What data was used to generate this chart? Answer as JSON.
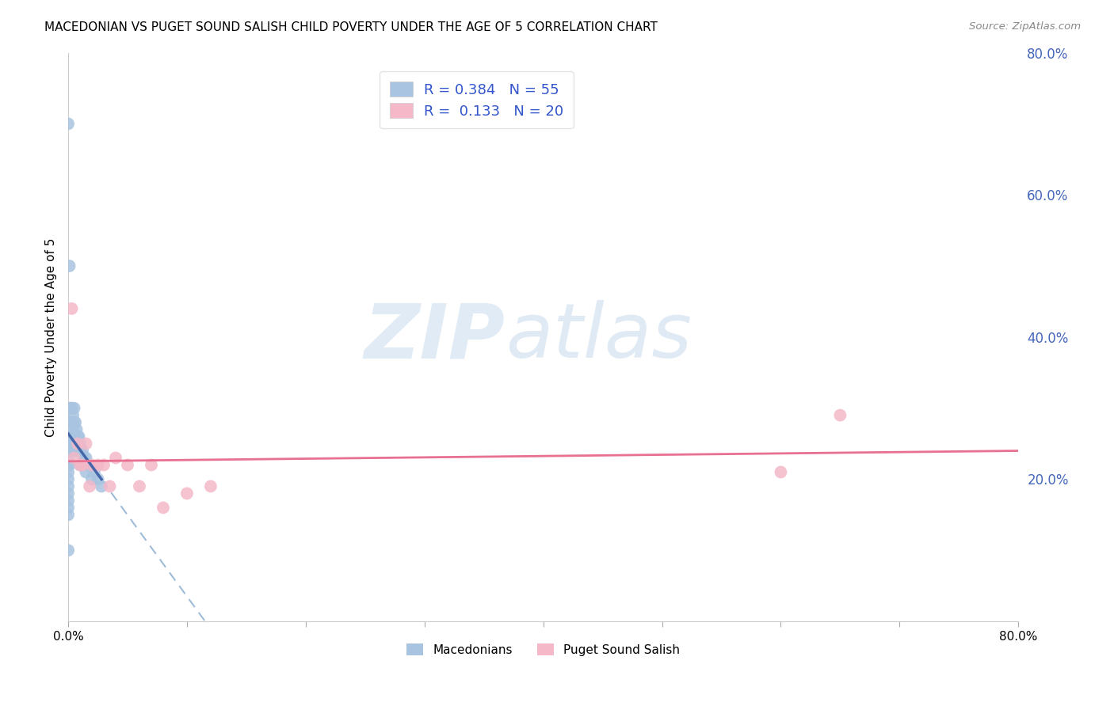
{
  "title": "MACEDONIAN VS PUGET SOUND SALISH CHILD POVERTY UNDER THE AGE OF 5 CORRELATION CHART",
  "source": "Source: ZipAtlas.com",
  "ylabel": "Child Poverty Under the Age of 5",
  "xlim": [
    0.0,
    0.8
  ],
  "ylim": [
    0.0,
    0.8
  ],
  "macedonian_R": 0.384,
  "macedonian_N": 55,
  "puget_R": 0.133,
  "puget_N": 20,
  "macedonian_color": "#a8c4e0",
  "puget_color": "#f4b8c8",
  "macedonian_line_color": "#4466aa",
  "macedonian_dash_color": "#88aacc",
  "puget_line_color": "#e87090",
  "legend_color": "#3355cc",
  "watermark_zip": "ZIP",
  "watermark_atlas": "atlas",
  "macedonian_x": [
    0.0,
    0.0,
    0.0,
    0.0,
    0.0,
    0.0,
    0.0,
    0.0,
    0.0,
    0.0,
    0.0,
    0.0,
    0.0,
    0.001,
    0.001,
    0.001,
    0.001,
    0.001,
    0.002,
    0.002,
    0.002,
    0.002,
    0.003,
    0.003,
    0.003,
    0.003,
    0.004,
    0.004,
    0.004,
    0.005,
    0.005,
    0.005,
    0.006,
    0.006,
    0.006,
    0.007,
    0.007,
    0.008,
    0.008,
    0.009,
    0.009,
    0.01,
    0.01,
    0.01,
    0.012,
    0.012,
    0.013,
    0.015,
    0.015,
    0.018,
    0.02,
    0.022,
    0.025,
    0.028,
    0.001
  ],
  "macedonian_y": [
    0.7,
    0.25,
    0.24,
    0.23,
    0.22,
    0.21,
    0.2,
    0.19,
    0.18,
    0.17,
    0.16,
    0.15,
    0.1,
    0.3,
    0.28,
    0.26,
    0.24,
    0.22,
    0.3,
    0.28,
    0.26,
    0.24,
    0.3,
    0.28,
    0.26,
    0.24,
    0.29,
    0.27,
    0.25,
    0.3,
    0.28,
    0.26,
    0.28,
    0.26,
    0.24,
    0.27,
    0.25,
    0.26,
    0.24,
    0.26,
    0.24,
    0.25,
    0.24,
    0.22,
    0.24,
    0.22,
    0.23,
    0.23,
    0.21,
    0.22,
    0.2,
    0.21,
    0.2,
    0.19,
    0.5
  ],
  "puget_x": [
    0.003,
    0.005,
    0.008,
    0.01,
    0.012,
    0.015,
    0.018,
    0.02,
    0.025,
    0.03,
    0.035,
    0.04,
    0.05,
    0.06,
    0.07,
    0.08,
    0.1,
    0.12,
    0.6,
    0.65
  ],
  "puget_y": [
    0.44,
    0.23,
    0.25,
    0.22,
    0.22,
    0.25,
    0.19,
    0.22,
    0.22,
    0.22,
    0.19,
    0.23,
    0.22,
    0.19,
    0.22,
    0.16,
    0.18,
    0.19,
    0.21,
    0.29
  ]
}
